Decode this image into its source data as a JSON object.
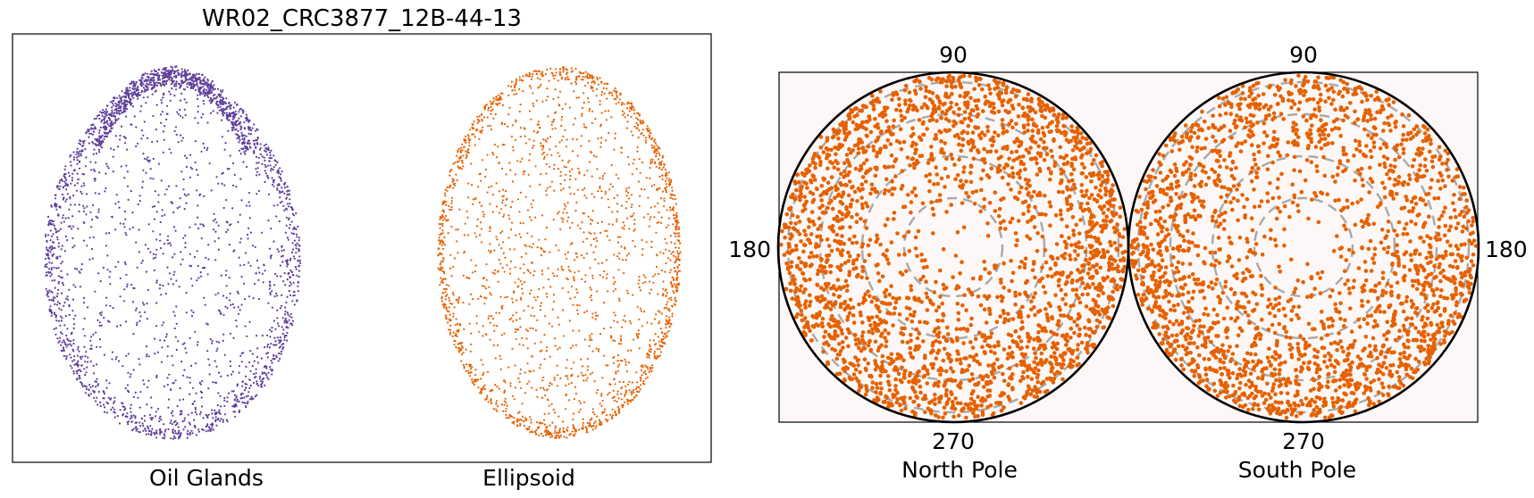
{
  "figure": {
    "title": "WR02_CRC3877_12B-44-13"
  },
  "colors": {
    "oil_glands": "#5e3c99",
    "ellipsoid": "#e66101",
    "grid": "#aaaaaa",
    "projection_background": "#fdf8f7"
  },
  "chart_data": [
    {
      "type": "scatter",
      "panel": "left",
      "title": "WR02_CRC3877_12B-44-13",
      "grid": false,
      "series": [
        {
          "name": "Oil Glands",
          "color": "#5e3c99",
          "point_count": 9000,
          "distribution": "dense rim around a roughly egg-shaped 2D projection, denser band near the top"
        },
        {
          "name": "Ellipsoid",
          "color": "#e66101",
          "point_count": 9000,
          "distribution": "projection of points on an ellipsoid surface, denser toward the outline"
        }
      ],
      "xlabel_left": "Oil Glands",
      "xlabel_right": "Ellipsoid"
    },
    {
      "type": "scatter",
      "panel": "right",
      "projection": "polar (stereographic-style) views of both poles",
      "grid": true,
      "subplots": [
        {
          "name": "North Pole",
          "label": "North Pole",
          "angle_labels": {
            "top": "90",
            "left": "180",
            "bottom": "270"
          },
          "color": "#e66101",
          "point_count": 3600
        },
        {
          "name": "South Pole",
          "label": "South Pole",
          "angle_labels": {
            "top": "90",
            "right": "180",
            "bottom": "270"
          },
          "color": "#e66101",
          "point_count": 3600
        }
      ],
      "concentric_rings": 4
    }
  ]
}
